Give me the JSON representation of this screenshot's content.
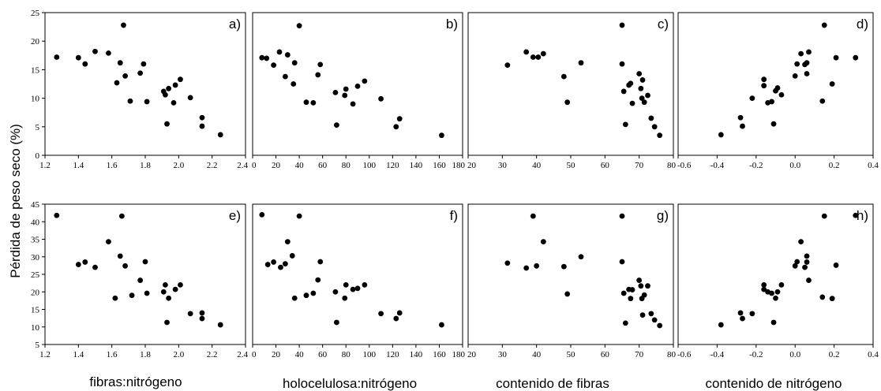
{
  "figure": {
    "ylabel": "Pérdida de peso seco (%)",
    "xlabels": [
      "fibras:nitrógeno",
      "holocelulosa:nitrógeno",
      "contenido de fibras",
      "contenido de nitrógeno"
    ]
  },
  "chart_data": [
    {
      "type": "scatter",
      "panel_label": "a)",
      "xlim": [
        1.2,
        2.4
      ],
      "ylim": [
        0,
        25
      ],
      "xticks": [
        "1.2",
        "1.4",
        "1.6",
        "1.8",
        "2.0",
        "2.2",
        "2.4"
      ],
      "yticks": [
        "0",
        "5",
        "10",
        "15",
        "20",
        "25"
      ],
      "x": [
        1.27,
        1.4,
        1.44,
        1.5,
        1.58,
        1.63,
        1.65,
        1.67,
        1.68,
        1.71,
        1.77,
        1.79,
        1.81,
        1.91,
        1.92,
        1.93,
        1.94,
        1.97,
        1.98,
        2.01,
        2.07,
        2.14,
        2.14,
        2.25
      ],
      "y": [
        17.2,
        17.1,
        16.0,
        18.2,
        17.9,
        12.7,
        16.2,
        22.8,
        13.9,
        9.5,
        14.4,
        16.0,
        9.4,
        11.2,
        10.6,
        5.5,
        11.7,
        9.2,
        12.3,
        13.3,
        10.1,
        6.6,
        5.1,
        3.6
      ]
    },
    {
      "type": "scatter",
      "panel_label": "b)",
      "xlim": [
        0,
        180
      ],
      "ylim": [
        0,
        25
      ],
      "xticks": [
        "0",
        "20",
        "40",
        "60",
        "80",
        "100",
        "120",
        "140",
        "160",
        "180"
      ],
      "yticks": [
        "0",
        "5",
        "10",
        "15",
        "20",
        "25"
      ],
      "x": [
        8,
        12,
        18,
        23,
        28,
        30,
        35,
        36,
        40,
        46,
        52,
        56,
        58,
        71,
        72,
        79,
        80,
        86,
        90,
        96,
        110,
        123,
        126,
        162
      ],
      "y": [
        17.1,
        17.0,
        15.8,
        18.1,
        13.8,
        17.6,
        12.5,
        16.2,
        22.7,
        9.3,
        9.2,
        14.1,
        15.9,
        11.0,
        5.3,
        10.5,
        11.6,
        9.0,
        12.1,
        13.0,
        9.9,
        5.0,
        6.4,
        3.5
      ]
    },
    {
      "type": "scatter",
      "panel_label": "c)",
      "xlim": [
        20,
        80
      ],
      "ylim": [
        0,
        25
      ],
      "xticks": [
        "20",
        "30",
        "40",
        "50",
        "60",
        "70",
        "80"
      ],
      "yticks": [
        "0",
        "5",
        "10",
        "15",
        "20",
        "25"
      ],
      "x": [
        31.5,
        37,
        39,
        40.5,
        42,
        48,
        49,
        53,
        65,
        65,
        65.5,
        66,
        67,
        67.5,
        68,
        70,
        70.5,
        70.8,
        71,
        71.5,
        72.5,
        73.5,
        74.5,
        76
      ],
      "y": [
        15.8,
        18.1,
        17.2,
        17.2,
        17.8,
        13.8,
        9.3,
        16.2,
        22.8,
        16.0,
        11.2,
        5.4,
        12.3,
        12.6,
        9.1,
        14.3,
        11.7,
        10.0,
        13.2,
        9.3,
        10.5,
        6.5,
        5.0,
        3.5
      ]
    },
    {
      "type": "scatter",
      "panel_label": "d)",
      "xlim": [
        -0.6,
        0.4
      ],
      "ylim": [
        0,
        25
      ],
      "xticks": [
        "-0.6",
        "-0.4",
        "-0.2",
        "0.0",
        "0.2",
        "0.4"
      ],
      "yticks": [
        "0",
        "5",
        "10",
        "15",
        "20",
        "25"
      ],
      "x": [
        -0.38,
        -0.28,
        -0.27,
        -0.22,
        -0.16,
        -0.16,
        -0.14,
        -0.12,
        -0.11,
        -0.1,
        -0.09,
        -0.07,
        0.0,
        0.01,
        0.03,
        0.05,
        0.06,
        0.06,
        0.07,
        0.14,
        0.15,
        0.19,
        0.21,
        0.31
      ],
      "y": [
        3.6,
        6.6,
        5.1,
        10.0,
        13.3,
        12.2,
        9.2,
        9.4,
        5.5,
        11.3,
        11.8,
        10.6,
        13.9,
        16.0,
        17.8,
        15.9,
        16.2,
        14.3,
        18.1,
        9.5,
        22.8,
        12.5,
        17.1,
        17.1
      ]
    },
    {
      "type": "scatter",
      "panel_label": "e)",
      "xlim": [
        1.2,
        2.4
      ],
      "ylim": [
        5,
        45
      ],
      "xticks": [
        "1.2",
        "1.4",
        "1.6",
        "1.8",
        "2.0",
        "2.2",
        "2.4"
      ],
      "yticks": [
        "5",
        "10",
        "15",
        "20",
        "25",
        "30",
        "35",
        "40",
        "45"
      ],
      "x": [
        1.27,
        1.4,
        1.44,
        1.5,
        1.58,
        1.62,
        1.65,
        1.66,
        1.68,
        1.72,
        1.77,
        1.8,
        1.81,
        1.91,
        1.92,
        1.93,
        1.94,
        1.98,
        2.01,
        2.07,
        2.14,
        2.14,
        2.25
      ],
      "y": [
        41.8,
        27.8,
        28.5,
        27.0,
        34.3,
        18.2,
        30.2,
        41.6,
        27.4,
        19.0,
        23.3,
        28.6,
        19.6,
        20.0,
        22.0,
        11.3,
        18.2,
        20.7,
        22.0,
        13.8,
        12.4,
        14.0,
        10.6
      ]
    },
    {
      "type": "scatter",
      "panel_label": "f)",
      "xlim": [
        0,
        180
      ],
      "ylim": [
        5,
        45
      ],
      "xticks": [
        "0",
        "20",
        "40",
        "60",
        "80",
        "100",
        "120",
        "140",
        "160",
        "180"
      ],
      "yticks": [
        "5",
        "10",
        "15",
        "20",
        "25",
        "30",
        "35",
        "40",
        "45"
      ],
      "x": [
        8,
        13,
        18,
        24,
        28,
        30,
        34,
        36,
        40,
        46,
        52,
        56,
        58,
        71,
        72,
        79,
        80,
        86,
        90,
        96,
        110,
        123,
        126,
        162
      ],
      "y": [
        42.0,
        27.8,
        28.5,
        27.0,
        28.0,
        34.3,
        30.3,
        18.2,
        41.6,
        19.0,
        19.6,
        23.4,
        28.6,
        20.0,
        11.3,
        18.2,
        22.0,
        20.7,
        21.0,
        22.0,
        13.8,
        12.4,
        14.0,
        10.6
      ]
    },
    {
      "type": "scatter",
      "panel_label": "g)",
      "xlim": [
        20,
        80
      ],
      "ylim": [
        5,
        45
      ],
      "xticks": [
        "20",
        "30",
        "40",
        "50",
        "60",
        "70",
        "80"
      ],
      "yticks": [
        "5",
        "10",
        "15",
        "20",
        "25",
        "30",
        "35",
        "40",
        "45"
      ],
      "x": [
        31.5,
        37,
        39,
        40,
        42,
        48,
        49,
        53,
        65,
        65,
        65.5,
        66,
        67,
        67.5,
        68,
        70,
        70.5,
        70.8,
        71,
        71.5,
        72.5,
        73.5,
        74.5,
        76
      ],
      "y": [
        28.2,
        26.8,
        41.6,
        27.4,
        34.3,
        27.2,
        19.4,
        30.0,
        41.6,
        28.6,
        19.6,
        11.1,
        20.7,
        18.1,
        20.6,
        23.3,
        21.7,
        18.1,
        13.4,
        19.1,
        21.7,
        13.8,
        12.0,
        10.4
      ]
    },
    {
      "type": "scatter",
      "panel_label": "h)",
      "xlim": [
        -0.6,
        0.4
      ],
      "ylim": [
        5,
        45
      ],
      "xticks": [
        "-0.6",
        "-0.4",
        "-0.2",
        "0.0",
        "0.2",
        "0.4"
      ],
      "yticks": [
        "5",
        "10",
        "15",
        "20",
        "25",
        "30",
        "35",
        "40",
        "45"
      ],
      "x": [
        -0.38,
        -0.28,
        -0.27,
        -0.22,
        -0.16,
        -0.16,
        -0.14,
        -0.12,
        -0.11,
        -0.1,
        -0.09,
        -0.07,
        0.0,
        0.01,
        0.03,
        0.05,
        0.06,
        0.06,
        0.07,
        0.14,
        0.15,
        0.19,
        0.21,
        0.31
      ],
      "y": [
        10.6,
        14.0,
        12.4,
        13.8,
        22.0,
        20.7,
        20.0,
        19.6,
        11.3,
        18.2,
        20.0,
        22.0,
        27.4,
        28.6,
        34.3,
        27.0,
        30.2,
        28.5,
        23.3,
        18.5,
        41.6,
        18.1,
        27.6,
        41.8
      ]
    }
  ]
}
